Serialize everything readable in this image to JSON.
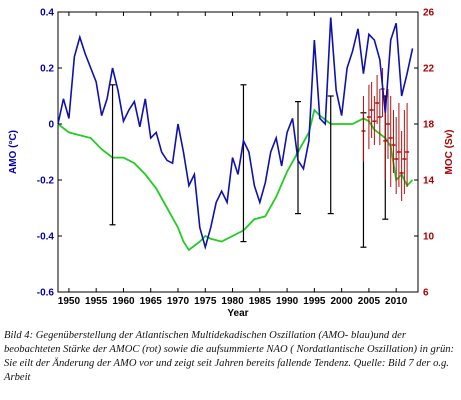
{
  "chart_data": {
    "type": "line",
    "xlabel": "Year",
    "ylabel_left": "AMO (°C)",
    "ylabel_right": "MOC (Sv)",
    "xlim": [
      1948,
      2014
    ],
    "ylim_left": [
      -0.6,
      0.4
    ],
    "ylim_right": [
      6,
      26
    ],
    "x_ticks": [
      "1950",
      "1955",
      "1960",
      "1965",
      "1970",
      "1975",
      "1980",
      "1985",
      "1990",
      "1995",
      "2000",
      "2005",
      "2010"
    ],
    "y_ticks_left": [
      "0.4",
      "0.2",
      "0",
      "-0.2",
      "-0.4",
      "-0.6"
    ],
    "y_ticks_right": [
      "26",
      "22",
      "18",
      "14",
      "10",
      "6"
    ],
    "colors": {
      "amo": "#1010b0",
      "nao": "#22cc22",
      "moc": "#b01010",
      "bars": "#000000",
      "axis_left": "#0000aa",
      "axis_right": "#aa0000"
    },
    "series": [
      {
        "x": [
          1948,
          1949,
          1950,
          1951,
          1952,
          1953,
          1954,
          1955,
          1956,
          1957,
          1958,
          1959,
          1960,
          1961,
          1962,
          1963,
          1964,
          1965,
          1966,
          1967,
          1968,
          1969,
          1970,
          1971,
          1972,
          1973,
          1974,
          1975,
          1976,
          1977,
          1978,
          1979,
          1980,
          1981,
          1982,
          1983,
          1984,
          1985,
          1986,
          1987,
          1988,
          1989,
          1990,
          1991,
          1992,
          1993,
          1994,
          1995,
          1996,
          1997,
          1998,
          1999,
          2000,
          2001,
          2002,
          2003,
          2004,
          2005,
          2006,
          2007,
          2008,
          2009,
          2010,
          2011,
          2012,
          2013
        ],
        "values": [
          0.0,
          0.09,
          0.02,
          0.24,
          0.31,
          0.25,
          0.2,
          0.15,
          0.03,
          0.09,
          0.2,
          0.12,
          0.01,
          0.05,
          0.08,
          -0.01,
          0.09,
          -0.05,
          -0.03,
          -0.1,
          -0.13,
          -0.14,
          0.0,
          -0.1,
          -0.22,
          -0.18,
          -0.37,
          -0.44,
          -0.37,
          -0.28,
          -0.24,
          -0.28,
          -0.12,
          -0.18,
          -0.06,
          -0.1,
          -0.22,
          -0.28,
          -0.21,
          -0.1,
          -0.05,
          -0.15,
          -0.03,
          0.02,
          -0.13,
          -0.16,
          -0.06,
          0.3,
          0.02,
          0.0,
          0.38,
          0.12,
          0.03,
          0.2,
          0.26,
          0.34,
          0.18,
          0.32,
          0.3,
          0.23,
          0.04,
          0.3,
          0.36,
          0.1,
          0.18,
          0.27
        ]
      },
      {
        "x": [
          1948,
          1950,
          1952,
          1954,
          1956,
          1958,
          1960,
          1962,
          1964,
          1966,
          1968,
          1970,
          1971,
          1972,
          1974,
          1975,
          1976,
          1978,
          1980,
          1982,
          1984,
          1986,
          1988,
          1990,
          1992,
          1994,
          1995,
          1996,
          1998,
          2000,
          2002,
          2004,
          2005,
          2006,
          2008,
          2009,
          2010,
          2011,
          2012,
          2013
        ],
        "values": [
          0.0,
          -0.03,
          -0.04,
          -0.05,
          -0.09,
          -0.12,
          -0.12,
          -0.14,
          -0.18,
          -0.23,
          -0.3,
          -0.37,
          -0.42,
          -0.45,
          -0.42,
          -0.4,
          -0.41,
          -0.42,
          -0.4,
          -0.38,
          -0.34,
          -0.33,
          -0.26,
          -0.17,
          -0.1,
          -0.03,
          0.05,
          0.03,
          0.0,
          0.0,
          0.0,
          0.02,
          0.01,
          -0.02,
          -0.05,
          -0.08,
          -0.2,
          -0.18,
          -0.22,
          -0.2
        ]
      },
      {
        "x": [
          2004,
          2005,
          2005.5,
          2006,
          2006.5,
          2007,
          2007.5,
          2008,
          2008.5,
          2009,
          2009.5,
          2010,
          2010.5,
          2011,
          2011.5,
          2012
        ],
        "values": [
          17.5,
          18.5,
          19.0,
          18.2,
          19.5,
          18.5,
          20.5,
          16.8,
          18.0,
          17.0,
          16.5,
          15.5,
          16.0,
          14.5,
          15.5,
          16.0
        ],
        "err_low": [
          15.3,
          16.2,
          17.0,
          16.5,
          18.0,
          16.5,
          18.5,
          14.0,
          15.5,
          13.5,
          14.5,
          13.0,
          13.5,
          12.5,
          13.0,
          13.5
        ],
        "err_high": [
          20.0,
          20.8,
          21.0,
          20.0,
          21.5,
          20.5,
          22.0,
          19.5,
          20.5,
          20.0,
          19.0,
          18.5,
          19.5,
          17.5,
          19.0,
          19.5
        ]
      }
    ],
    "error_bars_amo": [
      {
        "x": 1958,
        "low": -0.36,
        "high": 0.14
      },
      {
        "x": 1982,
        "low": -0.42,
        "high": 0.14
      },
      {
        "x": 1992,
        "low": -0.32,
        "high": 0.08
      },
      {
        "x": 1998,
        "low": -0.32,
        "high": 0.1
      },
      {
        "x": 2004,
        "low": -0.44,
        "high": 0.04
      },
      {
        "x": 2008,
        "low": -0.34,
        "high": 0.1
      }
    ]
  },
  "caption": "Bild 4: Gegenüberstellung der Atlantischen Multidekadischen Oszillation (AMO- blau)und der beobachteten Stärke der AMOC (rot) sowie die aufsummierte NAO ( Nordatlantische Oszillation) in grün: Sie eilt der Änderung der AMO vor und zeigt seit Jahren bereits fallende Tendenz. Quelle: Bild 7 der o.g. Arbeit"
}
